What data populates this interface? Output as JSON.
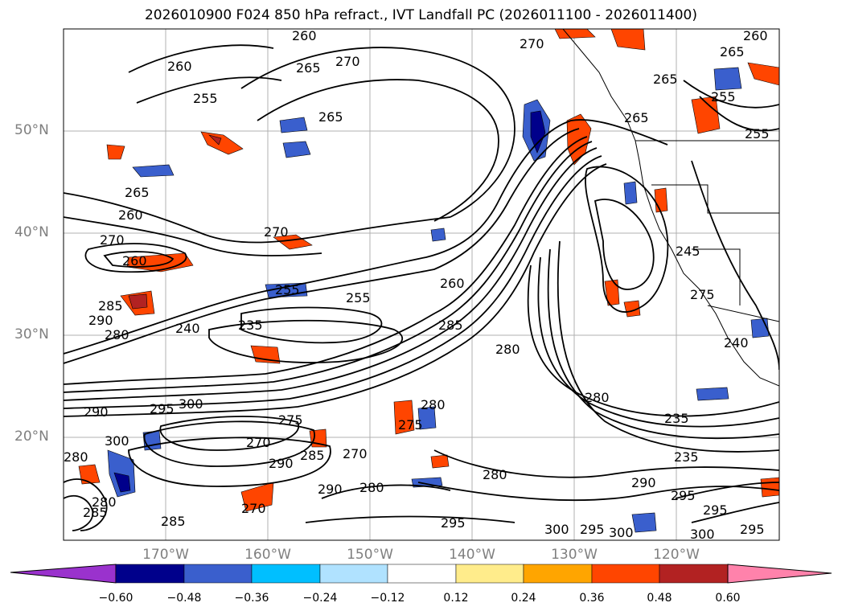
{
  "title": "2026010900 F024 850 hPa refract., IVT Landfall PC (2026011100 - 2026011400)",
  "lat_labels": [
    "50°N",
    "40°N",
    "30°N",
    "20°N"
  ],
  "lon_labels": [
    "170°W",
    "160°W",
    "150°W",
    "140°W",
    "130°W",
    "120°W"
  ],
  "colorbar": {
    "colors": [
      "#9a32cd",
      "#00008b",
      "#3a5fcd",
      "#00bfff",
      "#b0e2ff",
      "#ffffff",
      "#ffec8b",
      "#ffa500",
      "#ff4500",
      "#b22222",
      "#ff82ab"
    ],
    "tick_labels": [
      "−0.60",
      "−0.48",
      "−0.36",
      "−0.24",
      "−0.12",
      "0.12",
      "0.24",
      "0.36",
      "0.48",
      "0.60"
    ]
  },
  "contour_labels": [
    "260",
    "260",
    "265",
    "270",
    "270",
    "260",
    "255",
    "265",
    "265",
    "255",
    "265",
    "260",
    "270",
    "265",
    "270",
    "265",
    "255",
    "275",
    "260",
    "255",
    "245",
    "240",
    "285",
    "290",
    "280",
    "240",
    "235",
    "255",
    "260",
    "285",
    "280",
    "275",
    "280",
    "280",
    "290",
    "295",
    "300",
    "270",
    "275",
    "290",
    "285",
    "270",
    "300",
    "280",
    "280",
    "295",
    "280",
    "290",
    "295",
    "295",
    "300",
    "295",
    "300",
    "235",
    "235",
    "285",
    "280",
    "285",
    "270",
    "290",
    "300",
    "295"
  ]
}
